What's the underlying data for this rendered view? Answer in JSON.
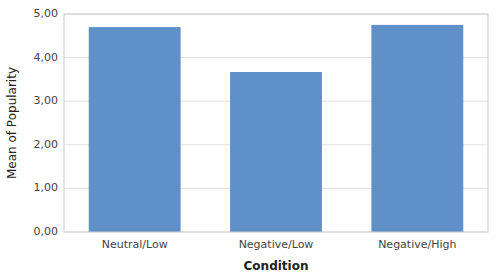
{
  "chart_data": {
    "type": "bar",
    "categories": [
      "Neutral/Low",
      "Negative/Low",
      "Negative/High"
    ],
    "values": [
      4.7,
      3.67,
      4.75
    ],
    "color": "#6090C8",
    "xlabel": "Condition",
    "ylabel": "Mean of Popularity",
    "ylim": [
      0,
      5.0
    ],
    "yticks": [
      {
        "value": 0.0,
        "label": "0,00"
      },
      {
        "value": 1.0,
        "label": "1,00"
      },
      {
        "value": 2.0,
        "label": "2,00"
      },
      {
        "value": 3.0,
        "label": "3,00"
      },
      {
        "value": 4.0,
        "label": "4,00"
      },
      {
        "value": 5.0,
        "label": "5,00"
      }
    ],
    "grid": true
  }
}
